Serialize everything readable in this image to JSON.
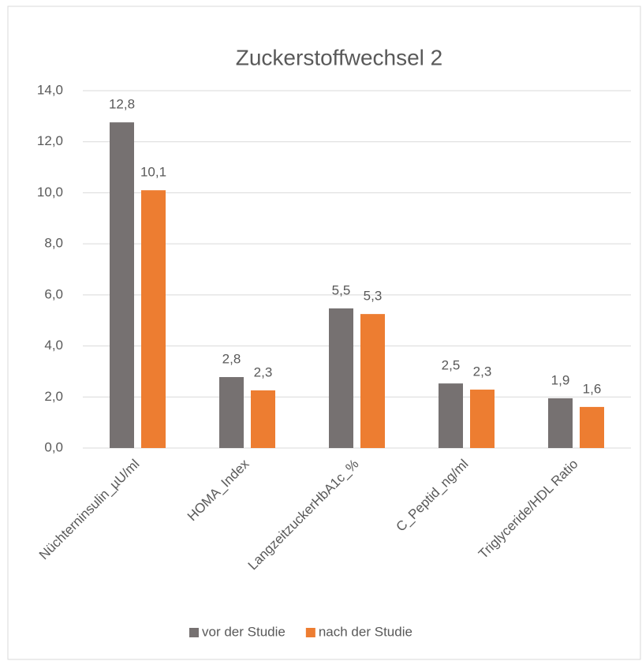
{
  "chart_data": {
    "type": "bar",
    "title": "Zuckerstoffwechsel 2",
    "categories": [
      "Nüchterninsulin_µU/ml",
      "HOMA_Index",
      "LangzeitzuckerHbA1c_%",
      "C_Peptid_ng/ml",
      "Triglyceride/HDL Ratio"
    ],
    "series": [
      {
        "name": "vor der Studie",
        "color": "#767171",
        "values": [
          12.76,
          2.78,
          5.47,
          2.53,
          1.95
        ],
        "value_labels": [
          "12,8",
          "2,8",
          "5,5",
          "2,5",
          "1,9"
        ]
      },
      {
        "name": "nach der Studie",
        "color": "#ED7D31",
        "values": [
          10.1,
          2.26,
          5.25,
          2.29,
          1.61
        ],
        "value_labels": [
          "10,1",
          "2,3",
          "5,3",
          "2,3",
          "1,6"
        ]
      }
    ],
    "ylim": [
      0,
      14
    ],
    "yticks": [
      {
        "value": 0,
        "label": "0,0"
      },
      {
        "value": 2,
        "label": "2,0"
      },
      {
        "value": 4,
        "label": "4,0"
      },
      {
        "value": 6,
        "label": "6,0"
      },
      {
        "value": 8,
        "label": "8,0"
      },
      {
        "value": 10,
        "label": "10,0"
      },
      {
        "value": 12,
        "label": "12,0"
      },
      {
        "value": 14,
        "label": "14,0"
      }
    ],
    "grid": true,
    "legend": "bottom"
  }
}
